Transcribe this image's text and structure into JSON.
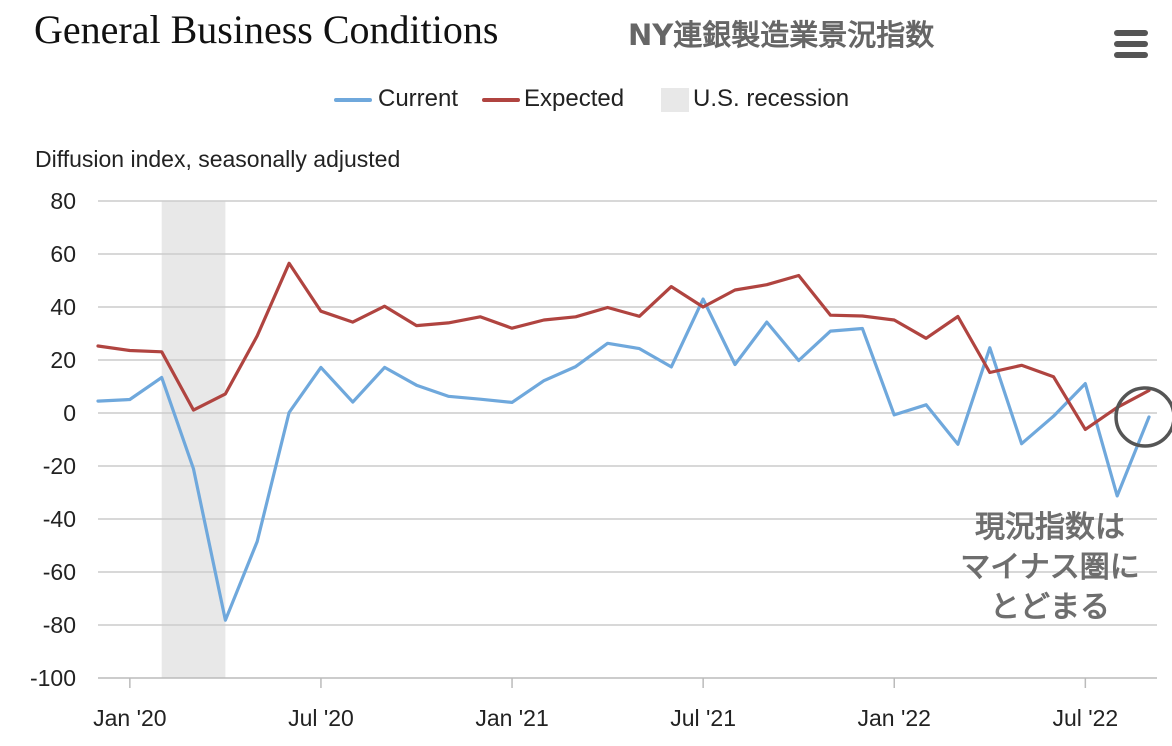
{
  "header": {
    "title": "General Business Conditions",
    "subtitle": "NY連銀製造業景況指数",
    "menu_icon": "hamburger-menu-icon"
  },
  "legend": {
    "current": "Current",
    "expected": "Expected",
    "recession": "U.S. recession"
  },
  "annotation": {
    "lines": [
      "現況指数は",
      "マイナス圏に",
      "とどまる"
    ]
  },
  "colors": {
    "current": "#6fa8dc",
    "expected": "#b04440",
    "recession": "#e8e8e8",
    "grid": "#cccccc",
    "callout": "#6e6e6e"
  },
  "chart_data": {
    "type": "line",
    "ylabel": "Diffusion index, seasonally adjusted",
    "ylim": [
      -100,
      80
    ],
    "yticks": [
      80,
      60,
      40,
      20,
      0,
      -20,
      -40,
      -60,
      -80,
      -100
    ],
    "xrange": [
      "2019-12",
      "2022-09"
    ],
    "xticks": [
      {
        "date": "2020-01",
        "label": "Jan '20"
      },
      {
        "date": "2020-07",
        "label": "Jul '20"
      },
      {
        "date": "2021-01",
        "label": "Jan '21"
      },
      {
        "date": "2021-07",
        "label": "Jul '21"
      },
      {
        "date": "2022-01",
        "label": "Jan '22"
      },
      {
        "date": "2022-07",
        "label": "Jul '22"
      }
    ],
    "grid": true,
    "legend_position": "top-center",
    "recession": {
      "start": "2020-02",
      "end": "2020-04"
    },
    "x": [
      "2019-12",
      "2020-01",
      "2020-02",
      "2020-03",
      "2020-04",
      "2020-05",
      "2020-06",
      "2020-07",
      "2020-08",
      "2020-09",
      "2020-10",
      "2020-11",
      "2020-12",
      "2021-01",
      "2021-02",
      "2021-03",
      "2021-04",
      "2021-05",
      "2021-06",
      "2021-07",
      "2021-08",
      "2021-09",
      "2021-10",
      "2021-11",
      "2021-12",
      "2022-01",
      "2022-02",
      "2022-03",
      "2022-04",
      "2022-05",
      "2022-06",
      "2022-07",
      "2022-08",
      "2022-09"
    ],
    "series": [
      {
        "name": "Current",
        "values": [
          4.5,
          5.1,
          13.4,
          -21.1,
          -78.2,
          -48.5,
          0.2,
          17.2,
          4.1,
          17.2,
          10.5,
          6.3,
          5.2,
          4.0,
          12.2,
          17.5,
          26.3,
          24.3,
          17.4,
          43.0,
          18.3,
          34.3,
          19.8,
          30.9,
          31.9,
          -0.7,
          3.1,
          -11.8,
          24.6,
          -11.6,
          -1.2,
          11.1,
          -31.3,
          -1.5
        ]
      },
      {
        "name": "Expected",
        "values": [
          25.3,
          23.6,
          23.1,
          1.1,
          7.2,
          29.1,
          56.5,
          38.4,
          34.3,
          40.3,
          33.0,
          34.0,
          36.3,
          32.0,
          35.1,
          36.3,
          39.8,
          36.5,
          47.7,
          40.0,
          46.4,
          48.4,
          51.9,
          36.9,
          36.6,
          35.1,
          28.2,
          36.4,
          15.3,
          18.0,
          13.7,
          -6.2,
          2.1,
          8.5
        ]
      }
    ]
  }
}
